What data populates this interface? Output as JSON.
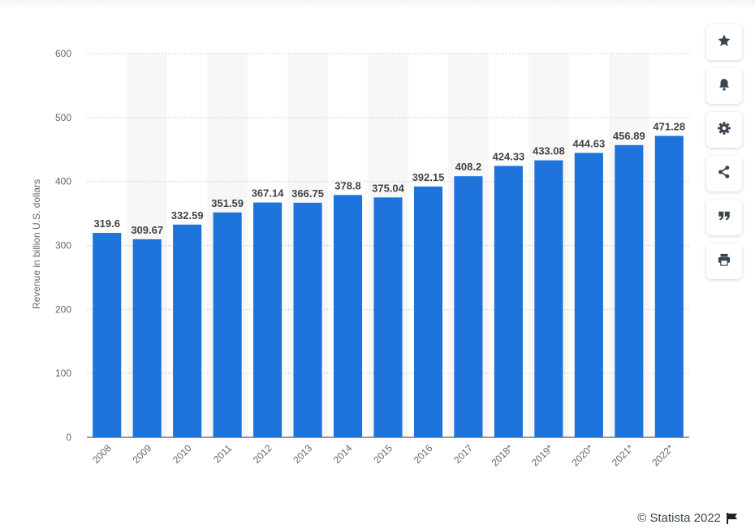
{
  "chart_data": {
    "type": "bar",
    "categories": [
      "2008",
      "2009",
      "2010",
      "2011",
      "2012",
      "2013",
      "2014",
      "2015",
      "2016",
      "2017",
      "2018*",
      "2019*",
      "2020*",
      "2021*",
      "2022*"
    ],
    "values": [
      319.6,
      309.67,
      332.59,
      351.59,
      367.14,
      366.75,
      378.8,
      375.04,
      392.15,
      408.2,
      424.33,
      433.08,
      444.63,
      456.89,
      471.28
    ],
    "value_labels": [
      "319.6",
      "309.67",
      "332.59",
      "351.59",
      "367.14",
      "366.75",
      "378.8",
      "375.04",
      "392.15",
      "408.2",
      "424.33",
      "433.08",
      "444.63",
      "456.89",
      "471.28"
    ],
    "ylabel": "Revenue in billion U.S. dollars",
    "ylim": [
      0,
      600
    ],
    "yticks": [
      0,
      100,
      200,
      300,
      400,
      500,
      600
    ],
    "grid": true,
    "bar_color": "#1f74db"
  },
  "credit": {
    "text": "© Statista 2022"
  },
  "toolbar": {
    "buttons": [
      {
        "name": "favorite-button",
        "icon": "star-icon"
      },
      {
        "name": "notification-button",
        "icon": "bell-icon"
      },
      {
        "name": "settings-button",
        "icon": "gear-icon"
      },
      {
        "name": "share-button",
        "icon": "share-icon"
      },
      {
        "name": "cite-button",
        "icon": "quote-icon"
      },
      {
        "name": "print-button",
        "icon": "print-icon"
      }
    ],
    "icon_color": "#3c4650"
  }
}
